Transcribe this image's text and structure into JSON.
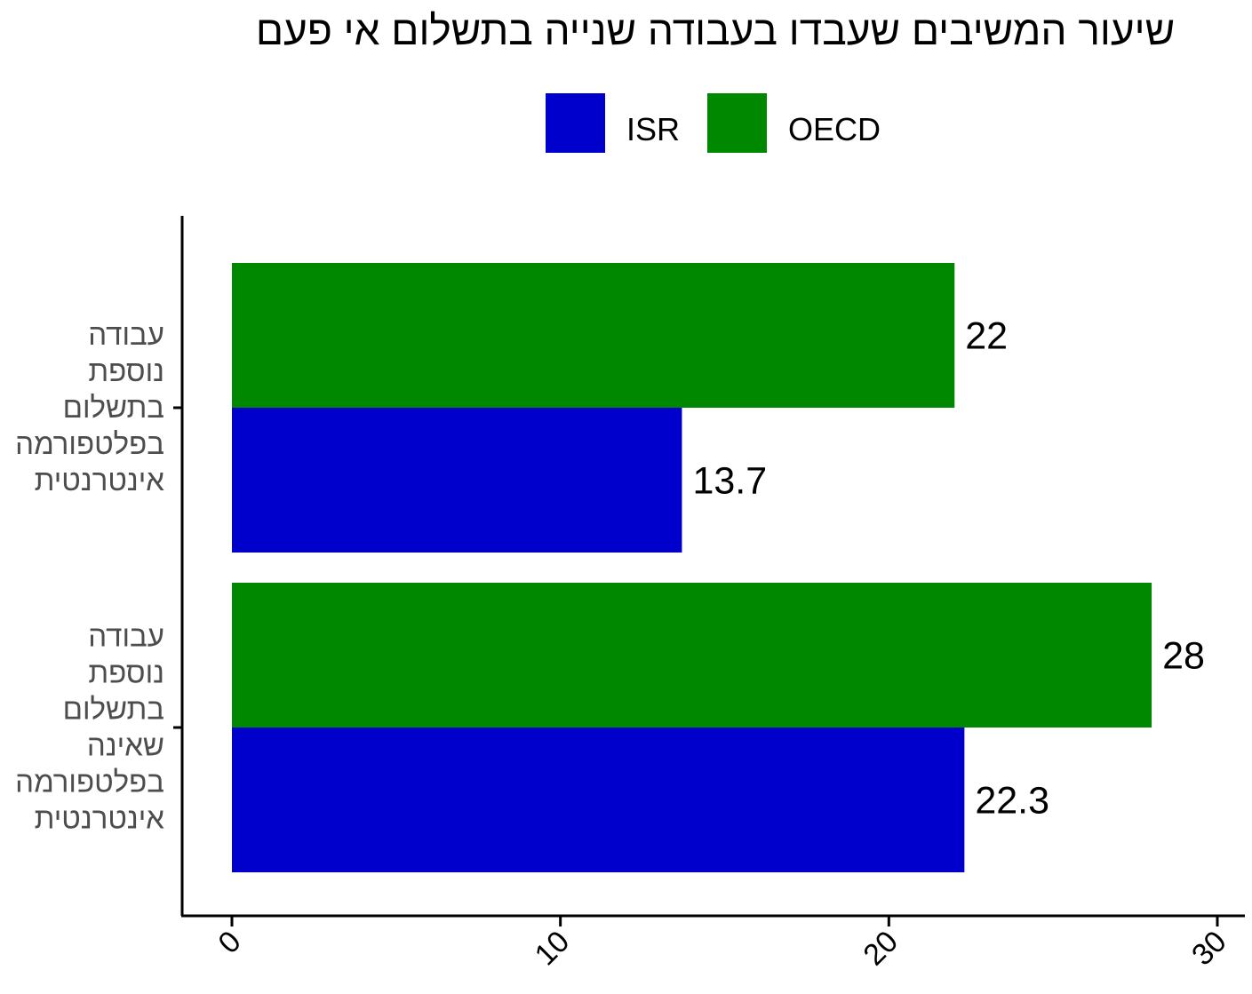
{
  "chart_data": {
    "type": "bar",
    "orientation": "horizontal",
    "title": "שיעור המשיבים שעבדו בעבודה שנייה בתשלום אי פעם",
    "legend_position": "top",
    "categories": [
      [
        "עבודה",
        "נוספת",
        "בתשלום",
        "בפלטפורמה",
        "אינטרנטית"
      ],
      [
        "עבודה",
        "נוספת",
        "בתשלום",
        "שאינה",
        "בפלטפורמה",
        "אינטרנטית"
      ]
    ],
    "series": [
      {
        "name": "ISR",
        "color": "#0000cc",
        "values": [
          13.7,
          22.3
        ],
        "labels": [
          "13.7",
          "22.3"
        ]
      },
      {
        "name": "OECD",
        "color": "#008800",
        "values": [
          22,
          28
        ],
        "labels": [
          "22",
          "28"
        ]
      }
    ],
    "xlim": [
      0,
      30
    ],
    "x_ticks": [
      "0",
      "10",
      "20",
      "30"
    ],
    "grid": false,
    "xlabel": "",
    "ylabel": ""
  }
}
